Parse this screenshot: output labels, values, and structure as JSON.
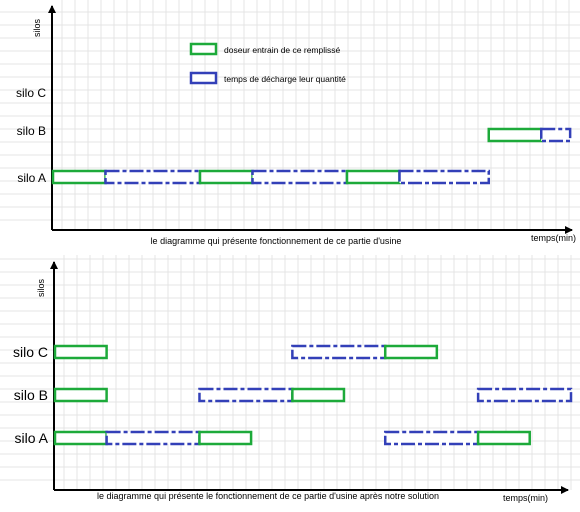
{
  "chart_data": [
    {
      "type": "gantt",
      "y_axis_label": "silos",
      "x_axis_label": "temps(min)",
      "caption": "le diagramme qui présente fonctionnement de ce partie d'usine",
      "grid": true,
      "rows": [
        "silo A",
        "silo B",
        "silo C"
      ],
      "legend": [
        {
          "name": "doseur entrain de ce remplissé",
          "color": "#1daa3a",
          "style": "solid"
        },
        {
          "name": "temps de décharge leur quantité",
          "color": "#3340b8",
          "style": "dashed"
        }
      ],
      "bars": [
        {
          "row": "silo A",
          "series": 0,
          "start": 0,
          "end": 1
        },
        {
          "row": "silo A",
          "series": 1,
          "start": 1,
          "end": 2.8
        },
        {
          "row": "silo A",
          "series": 0,
          "start": 2.8,
          "end": 3.8
        },
        {
          "row": "silo A",
          "series": 1,
          "start": 3.8,
          "end": 5.6
        },
        {
          "row": "silo A",
          "series": 0,
          "start": 5.6,
          "end": 6.6
        },
        {
          "row": "silo A",
          "series": 1,
          "start": 6.6,
          "end": 8.3
        },
        {
          "row": "silo B",
          "series": 0,
          "start": 8.3,
          "end": 9.3
        },
        {
          "row": "silo B",
          "series": 1,
          "start": 9.3,
          "end": 9.85
        }
      ]
    },
    {
      "type": "gantt",
      "y_axis_label": "silos",
      "x_axis_label": "temps(min)",
      "caption": "le diagramme qui présente le fonctionnement de ce partie d'usine après notre solution",
      "grid": true,
      "rows": [
        "silo A",
        "silo B",
        "silo C"
      ],
      "bars": [
        {
          "row": "silo A",
          "series": 0,
          "start": 0,
          "end": 1
        },
        {
          "row": "silo A",
          "series": 1,
          "start": 1,
          "end": 2.8
        },
        {
          "row": "silo A",
          "series": 0,
          "start": 2.8,
          "end": 3.8
        },
        {
          "row": "silo A",
          "series": 1,
          "start": 6.4,
          "end": 8.2
        },
        {
          "row": "silo A",
          "series": 0,
          "start": 8.2,
          "end": 9.2
        },
        {
          "row": "silo B",
          "series": 0,
          "start": 0,
          "end": 1
        },
        {
          "row": "silo B",
          "series": 1,
          "start": 2.8,
          "end": 4.6
        },
        {
          "row": "silo B",
          "series": 0,
          "start": 4.6,
          "end": 5.6
        },
        {
          "row": "silo B",
          "series": 1,
          "start": 8.2,
          "end": 10
        },
        {
          "row": "silo C",
          "series": 0,
          "start": 0,
          "end": 1
        },
        {
          "row": "silo C",
          "series": 1,
          "start": 4.6,
          "end": 6.4
        },
        {
          "row": "silo C",
          "series": 0,
          "start": 6.4,
          "end": 7.4
        }
      ]
    }
  ]
}
